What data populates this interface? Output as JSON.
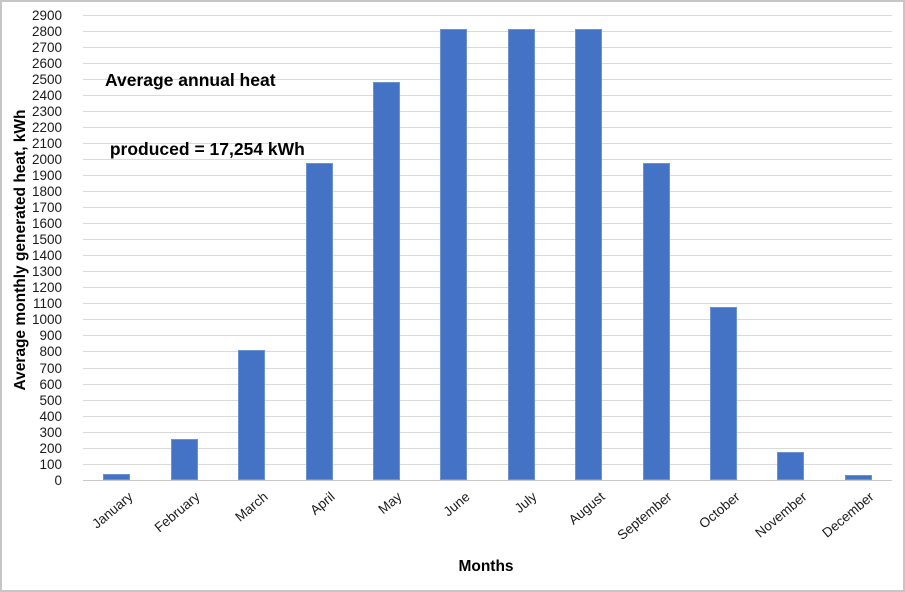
{
  "figure": {
    "background": "#ffffff",
    "border_color": "#c6c6c6"
  },
  "chart_data": {
    "type": "bar",
    "title": "",
    "xlabel": "Months",
    "ylabel": "Average monthly generated heat, kWh",
    "categories": [
      "January",
      "February",
      "March",
      "April",
      "May",
      "June",
      "July",
      "August",
      "September",
      "October",
      "November",
      "December"
    ],
    "values": [
      35,
      252,
      810,
      1978,
      2483,
      2813,
      2812,
      2813,
      1978,
      1078,
      172,
      30
    ],
    "ylim": [
      0,
      2900
    ],
    "ytick_step": 100,
    "grid": true,
    "legend_position": "none",
    "bar_color": "#4472C4",
    "bar_border_color": "#6e91cf",
    "gridline_color": "#d9d9d9",
    "annotation": {
      "lines": [
        "Average annual heat",
        " produced = 17,254 kWh"
      ],
      "full_text": "Average annual heat produced = 17,254 kWh"
    }
  }
}
